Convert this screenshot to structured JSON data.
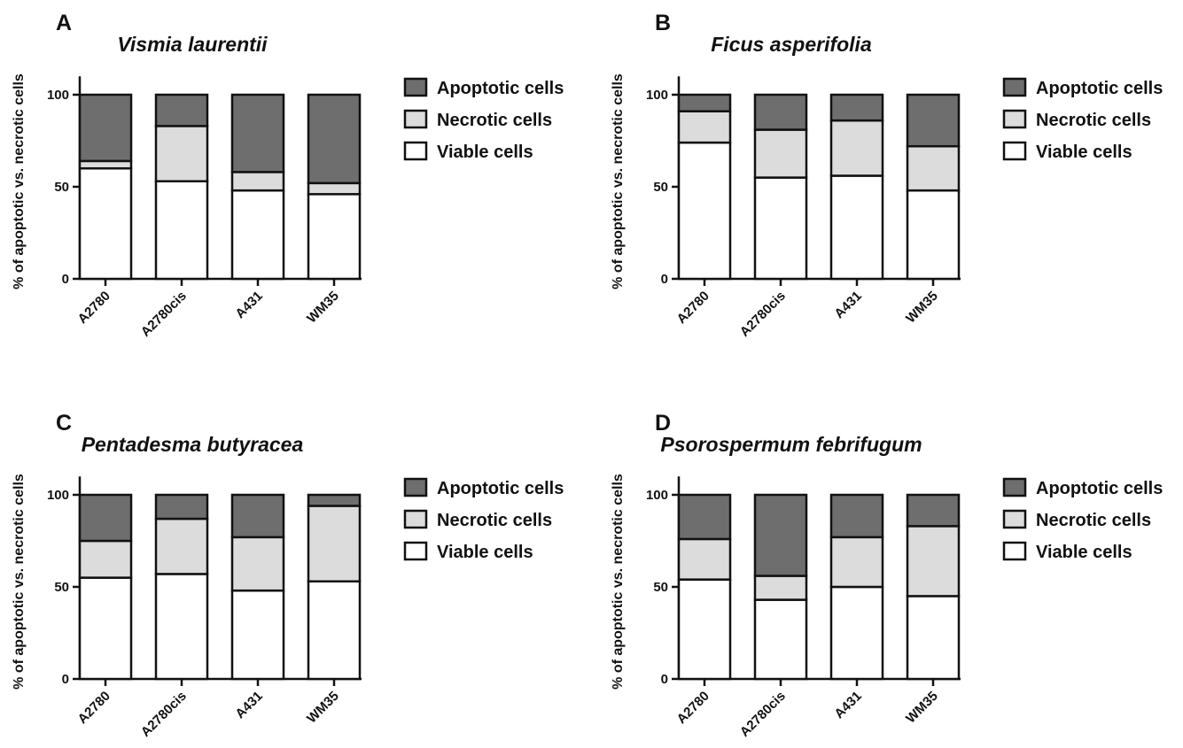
{
  "colors": {
    "apoptotic": "#6e6e6e",
    "necrotic": "#dcdcdc",
    "viable": "#ffffff",
    "outline": "#111111"
  },
  "chart_data": [
    {
      "type": "bar",
      "stacked": true,
      "panel": "A",
      "title": "Vismia laurentii",
      "ylabel": "% of apoptotic vs. necrotic cells",
      "xlabel": "",
      "categories": [
        "A2780",
        "A2780cis",
        "A431",
        "WM35"
      ],
      "ylim": [
        0,
        110
      ],
      "yticks": [
        0,
        50,
        100
      ],
      "legend_position": "right",
      "series": [
        {
          "name": "Viable cells",
          "key": "viable",
          "values": [
            60,
            53,
            48,
            46
          ]
        },
        {
          "name": "Necrotic cells",
          "key": "necrotic",
          "values": [
            4,
            30,
            10,
            6
          ]
        },
        {
          "name": "Apoptotic cells",
          "key": "apoptotic",
          "values": [
            36,
            17,
            42,
            48
          ]
        }
      ]
    },
    {
      "type": "bar",
      "stacked": true,
      "panel": "B",
      "title": "Ficus asperifolia",
      "ylabel": "% of apoptotic vs. necrotic cells",
      "xlabel": "",
      "categories": [
        "A2780",
        "A2780cis",
        "A431",
        "WM35"
      ],
      "ylim": [
        0,
        110
      ],
      "yticks": [
        0,
        50,
        100
      ],
      "legend_position": "right",
      "series": [
        {
          "name": "Viable cells",
          "key": "viable",
          "values": [
            74,
            55,
            56,
            48
          ]
        },
        {
          "name": "Necrotic cells",
          "key": "necrotic",
          "values": [
            17,
            26,
            30,
            24
          ]
        },
        {
          "name": "Apoptotic cells",
          "key": "apoptotic",
          "values": [
            9,
            19,
            14,
            28
          ]
        }
      ]
    },
    {
      "type": "bar",
      "stacked": true,
      "panel": "C",
      "title": "Pentadesma butyracea",
      "ylabel": "% of apoptotic vs. necrotic cells",
      "xlabel": "",
      "categories": [
        "A2780",
        "A2780cis",
        "A431",
        "WM35"
      ],
      "ylim": [
        0,
        110
      ],
      "yticks": [
        0,
        50,
        100
      ],
      "legend_position": "right",
      "series": [
        {
          "name": "Viable cells",
          "key": "viable",
          "values": [
            55,
            57,
            48,
            53
          ]
        },
        {
          "name": "Necrotic cells",
          "key": "necrotic",
          "values": [
            20,
            30,
            29,
            41
          ]
        },
        {
          "name": "Apoptotic cells",
          "key": "apoptotic",
          "values": [
            25,
            13,
            23,
            6
          ]
        }
      ]
    },
    {
      "type": "bar",
      "stacked": true,
      "panel": "D",
      "title": "Psorospermum febrifugum",
      "ylabel": "% of apoptotic vs. necrotic cells",
      "xlabel": "",
      "categories": [
        "A2780",
        "A2780cis",
        "A431",
        "WM35"
      ],
      "ylim": [
        0,
        110
      ],
      "yticks": [
        0,
        50,
        100
      ],
      "legend_position": "right",
      "series": [
        {
          "name": "Viable cells",
          "key": "viable",
          "values": [
            54,
            43,
            50,
            45
          ]
        },
        {
          "name": "Necrotic cells",
          "key": "necrotic",
          "values": [
            22,
            13,
            27,
            38
          ]
        },
        {
          "name": "Apoptotic cells",
          "key": "apoptotic",
          "values": [
            24,
            44,
            23,
            17
          ]
        }
      ]
    }
  ]
}
